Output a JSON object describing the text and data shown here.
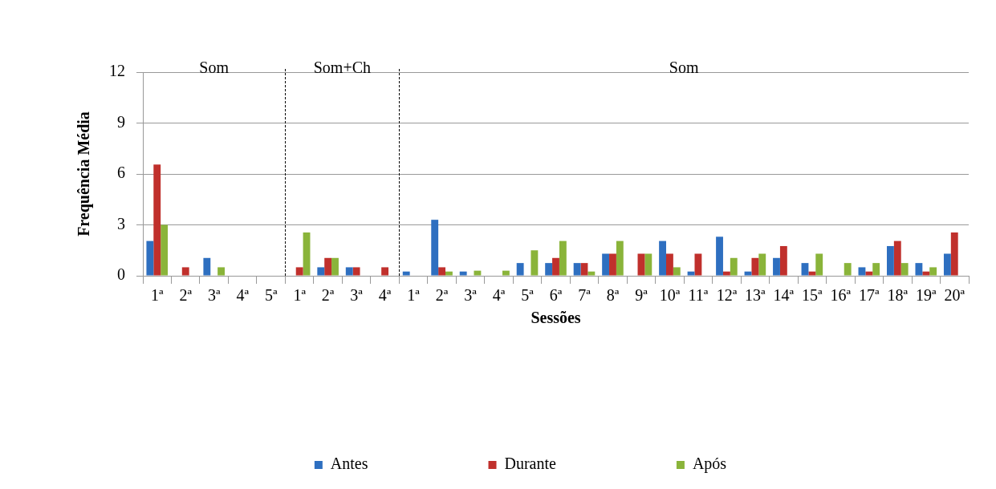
{
  "chart_data": {
    "type": "bar",
    "xlabel": "Sessões",
    "ylabel": "Frequência Média",
    "categories": [
      "1ª",
      "2ª",
      "3ª",
      "4ª",
      "5ª",
      "1ª",
      "2ª",
      "3ª",
      "4ª",
      "1ª",
      "2ª",
      "3ª",
      "4ª",
      "5ª",
      "6ª",
      "7ª",
      "8ª",
      "9ª",
      "10ª",
      "11ª",
      "12ª",
      "13ª",
      "14ª",
      "15ª",
      "16ª",
      "17ª",
      "18ª",
      "19ª",
      "20ª"
    ],
    "series": [
      {
        "name": "Antes",
        "color": "#2e6fc0",
        "values": [
          2.05,
          0,
          1.05,
          0,
          0,
          0,
          0.5,
          0.5,
          0,
          0.25,
          3.3,
          0.25,
          0,
          0.75,
          0.75,
          0.75,
          1.3,
          0,
          2.05,
          0.25,
          2.3,
          0.25,
          1.05,
          0.75,
          0,
          0.5,
          1.75,
          0.75,
          1.3
        ]
      },
      {
        "name": "Durante",
        "color": "#c0302c",
        "values": [
          6.55,
          0.5,
          0,
          0,
          0,
          0.5,
          1.05,
          0.5,
          0.5,
          0,
          0.5,
          0,
          0,
          0,
          1.05,
          0.75,
          1.3,
          1.3,
          1.3,
          1.3,
          0.25,
          1.05,
          1.75,
          0.25,
          0,
          0.25,
          2.05,
          0.25,
          2.55
        ]
      },
      {
        "name": "Após",
        "color": "#8ab43a",
        "values": [
          3.0,
          0,
          0.5,
          0,
          0,
          2.55,
          1.05,
          0,
          0,
          0,
          0.25,
          0.3,
          0.3,
          1.5,
          2.05,
          0.25,
          2.05,
          1.3,
          0.5,
          0,
          1.05,
          1.3,
          0,
          1.3,
          0.75,
          0.75,
          0.75,
          0.5,
          0
        ]
      }
    ],
    "ylim": [
      0,
      12
    ],
    "yticks": [
      0,
      3,
      6,
      9,
      12
    ],
    "grid": "y",
    "legend": "bottom",
    "annotations": [
      "Som",
      "Som+Ch",
      "Som"
    ]
  }
}
